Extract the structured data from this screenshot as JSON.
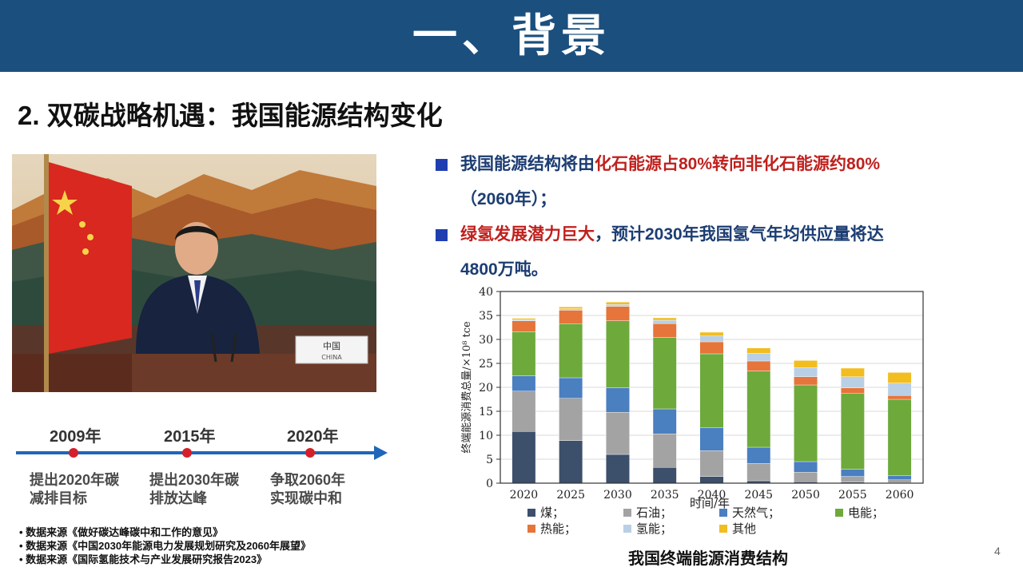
{
  "header": {
    "title": "一、背景"
  },
  "section": {
    "subtitle": "2.  双碳战略机遇：我国能源结构变化"
  },
  "photo": {
    "placard_cn": "中国",
    "placard_en": "CHINA"
  },
  "timeline": {
    "items": [
      {
        "year": "2009年",
        "line1": "提出2020年碳",
        "line2": "减排目标"
      },
      {
        "year": "2015年",
        "line1": "提出2030年碳",
        "line2": "排放达峰"
      },
      {
        "year": "2020年",
        "line1": "争取2060年",
        "line2": "实现碳中和"
      }
    ]
  },
  "sources": [
    "• 数据来源《做好碳达峰碳中和工作的意见》",
    "• 数据来源《中国2030年能源电力发展规划研究及2060年展望》",
    "• 数据来源《国际氢能技术与产业发展研究报告2023》"
  ],
  "bullets": {
    "b1_a": "我国能源结构将由",
    "b1_b": "化石能源占80%转向非化石能源约80%",
    "b1_c": "（2060年）；",
    "b2_a": "绿氢发展潜力巨大",
    "b2_b": "，预计2030年我国氢气年均供应量将达",
    "b2_c": "4800万吨。"
  },
  "chart_data": {
    "type": "bar",
    "stacked": true,
    "categories": [
      "2020",
      "2025",
      "2030",
      "2035",
      "2040",
      "2045",
      "2050",
      "2055",
      "2060"
    ],
    "ylabel": "终端能源消费总量/×10⁸ tce",
    "xlabel": "时间/年",
    "ylim": [
      0,
      40
    ],
    "yticks": [
      0,
      5,
      10,
      15,
      20,
      25,
      30,
      35,
      40
    ],
    "series": [
      {
        "name": "煤；",
        "color": "#3c4f6b",
        "values": [
          10.8,
          8.9,
          6.0,
          3.3,
          1.4,
          0.5,
          0.3,
          0.2,
          0.1
        ]
      },
      {
        "name": "石油；",
        "color": "#a3a3a3",
        "values": [
          8.4,
          8.8,
          8.8,
          7.0,
          5.4,
          3.6,
          2.0,
          1.2,
          0.6
        ]
      },
      {
        "name": "天然气；",
        "color": "#4a7fc0",
        "values": [
          3.2,
          4.3,
          5.1,
          5.2,
          4.8,
          3.4,
          2.2,
          1.5,
          0.9
        ]
      },
      {
        "name": "电能；",
        "color": "#6ea93c",
        "values": [
          9.2,
          11.3,
          14.0,
          14.9,
          15.4,
          15.9,
          16.0,
          15.8,
          15.9
        ]
      },
      {
        "name": "热能；",
        "color": "#e5753a",
        "values": [
          2.3,
          2.8,
          3.0,
          2.9,
          2.5,
          2.1,
          1.7,
          1.2,
          0.8
        ]
      },
      {
        "name": "氢能；",
        "color": "#b9cfe6",
        "values": [
          0.2,
          0.3,
          0.4,
          0.7,
          1.2,
          1.6,
          1.9,
          2.3,
          2.6
        ]
      },
      {
        "name": "其他",
        "color": "#f2bd1f",
        "values": [
          0.3,
          0.4,
          0.5,
          0.5,
          0.8,
          1.1,
          1.5,
          1.8,
          2.2
        ]
      }
    ]
  },
  "chart_caption": "我国终端能源消费结构",
  "page_number": "4"
}
